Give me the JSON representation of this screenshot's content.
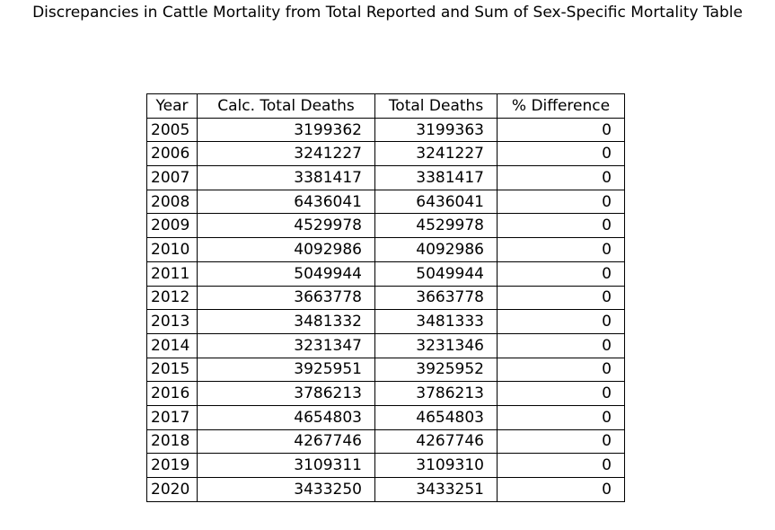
{
  "chart_data": {
    "type": "table",
    "title": "Discrepancies in Cattle Mortality from Total Reported and Sum of Sex-Specific Mortality Table",
    "columns": [
      "Year",
      "Calc. Total Deaths",
      "Total Deaths",
      "% Difference"
    ],
    "rows": [
      [
        "2005",
        "3199362",
        "3199363",
        "0"
      ],
      [
        "2006",
        "3241227",
        "3241227",
        "0"
      ],
      [
        "2007",
        "3381417",
        "3381417",
        "0"
      ],
      [
        "2008",
        "6436041",
        "6436041",
        "0"
      ],
      [
        "2009",
        "4529978",
        "4529978",
        "0"
      ],
      [
        "2010",
        "4092986",
        "4092986",
        "0"
      ],
      [
        "2011",
        "5049944",
        "5049944",
        "0"
      ],
      [
        "2012",
        "3663778",
        "3663778",
        "0"
      ],
      [
        "2013",
        "3481332",
        "3481333",
        "0"
      ],
      [
        "2014",
        "3231347",
        "3231346",
        "0"
      ],
      [
        "2015",
        "3925951",
        "3925952",
        "0"
      ],
      [
        "2016",
        "3786213",
        "3786213",
        "0"
      ],
      [
        "2017",
        "4654803",
        "4654803",
        "0"
      ],
      [
        "2018",
        "4267746",
        "4267746",
        "0"
      ],
      [
        "2019",
        "3109311",
        "3109310",
        "0"
      ],
      [
        "2020",
        "3433250",
        "3433251",
        "0"
      ]
    ]
  }
}
